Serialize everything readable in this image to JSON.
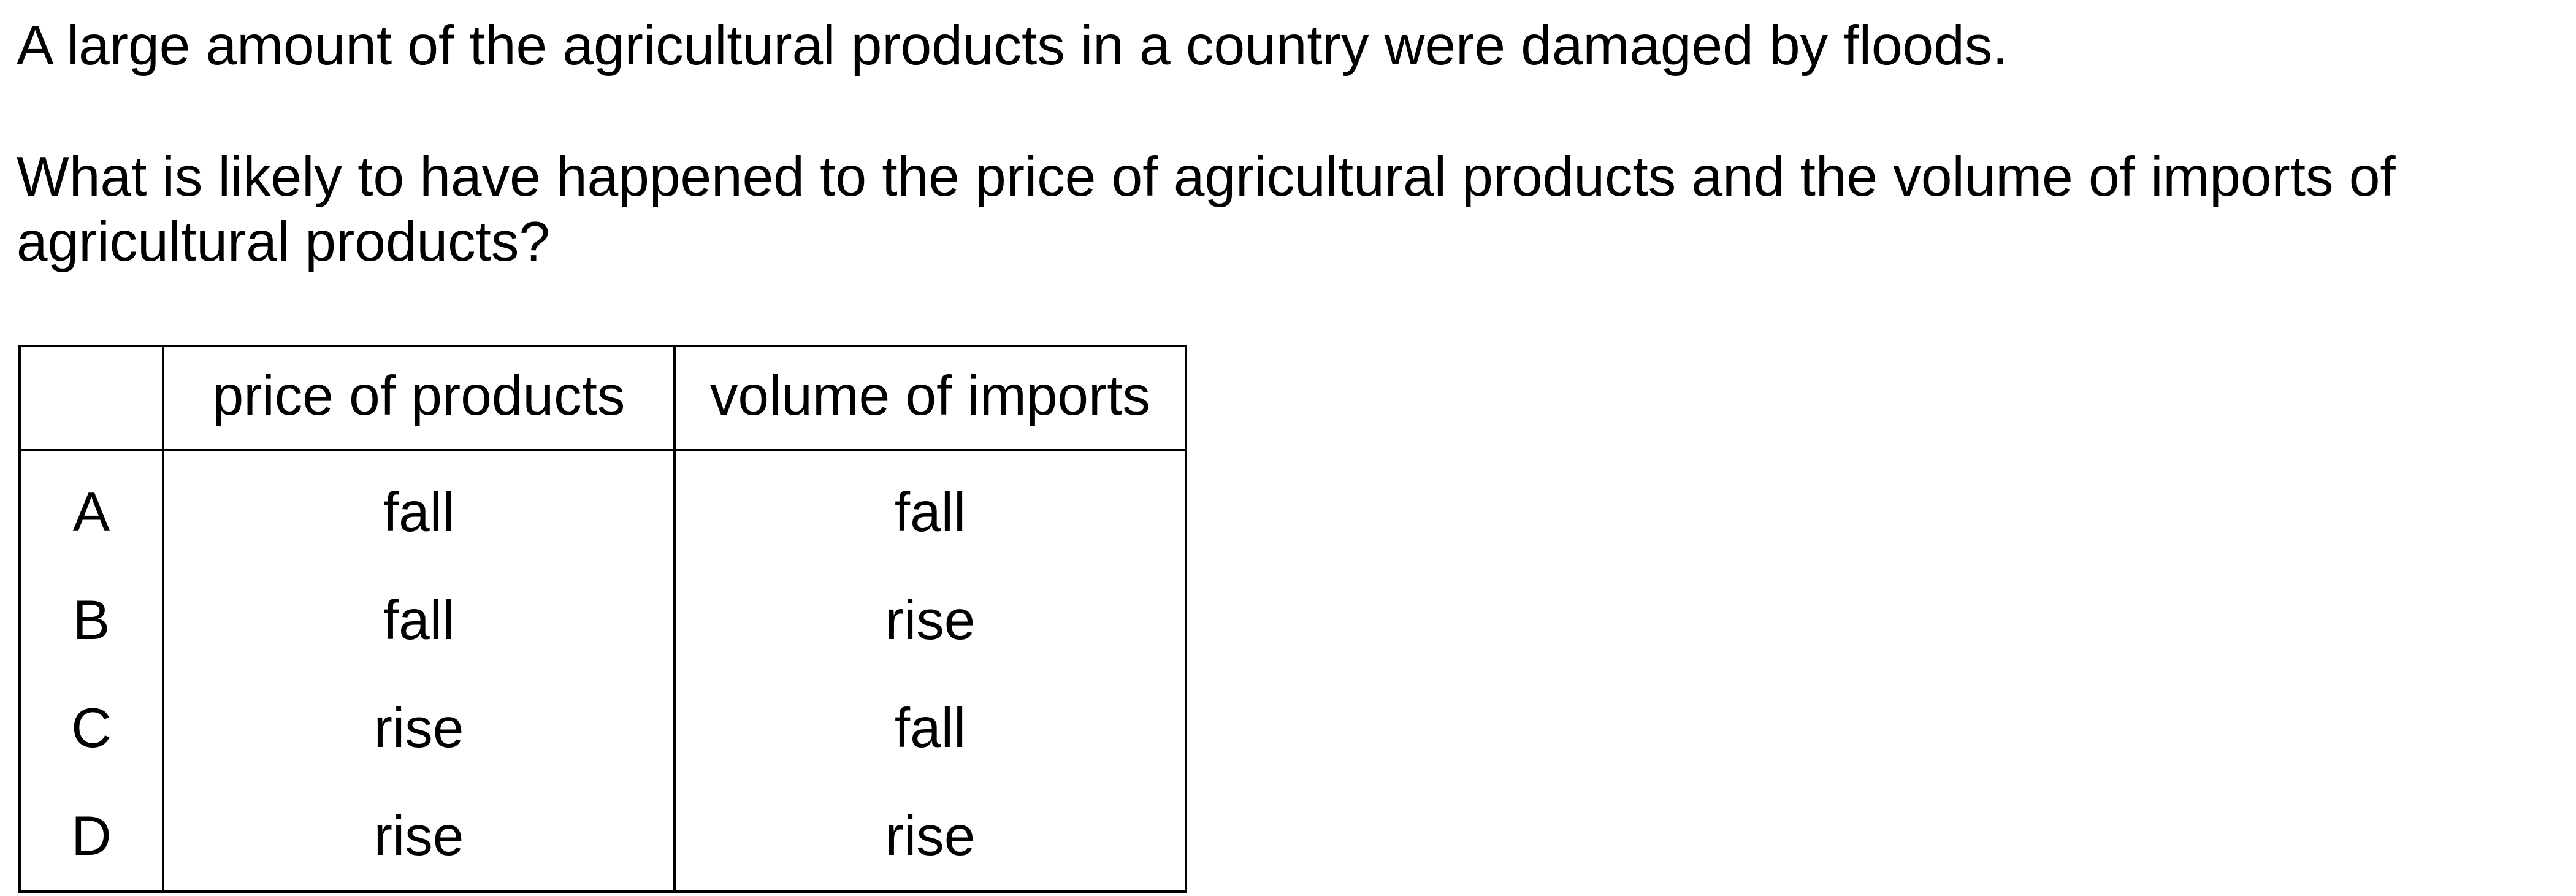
{
  "question": {
    "stem_line_1": "A large amount of the agricultural products in a country were damaged by floods.",
    "stem_line_2": "What is likely to have happened to the price of agricultural products and the volume of imports of agricultural products?"
  },
  "table": {
    "headers": [
      "",
      "price of products",
      "volume of imports"
    ],
    "rows": [
      {
        "letter": "A",
        "price": "fall",
        "imports": "fall"
      },
      {
        "letter": "B",
        "price": "fall",
        "imports": "rise"
      },
      {
        "letter": "C",
        "price": "rise",
        "imports": "fall"
      },
      {
        "letter": "D",
        "price": "rise",
        "imports": "rise"
      }
    ]
  }
}
